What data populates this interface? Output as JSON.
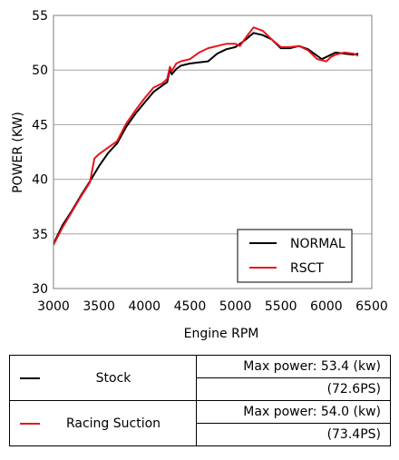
{
  "chart_data": {
    "type": "line",
    "xlabel": "Engine RPM",
    "ylabel": "POWER (KW)",
    "xlim": [
      3000,
      6500
    ],
    "ylim": [
      30,
      55
    ],
    "xticks": [
      3000,
      3500,
      4000,
      4500,
      5000,
      5500,
      6000,
      6500
    ],
    "yticks": [
      30,
      35,
      40,
      45,
      50,
      55
    ],
    "grid": "horizontal",
    "legend_position": "bottom-right",
    "series": [
      {
        "name": "NORMAL",
        "color": "#000000",
        "x": [
          3000,
          3100,
          3200,
          3300,
          3400,
          3500,
          3600,
          3700,
          3800,
          3900,
          4000,
          4100,
          4200,
          4250,
          4280,
          4300,
          4350,
          4400,
          4500,
          4600,
          4700,
          4800,
          4900,
          5000,
          5100,
          5200,
          5300,
          5400,
          5500,
          5600,
          5700,
          5800,
          5900,
          5950,
          6000,
          6100,
          6200,
          6300,
          6350
        ],
        "y": [
          34.1,
          35.8,
          37.1,
          38.5,
          39.8,
          41.2,
          42.4,
          43.3,
          44.8,
          46.0,
          47.0,
          48.0,
          48.6,
          48.9,
          50.1,
          49.6,
          50.1,
          50.4,
          50.6,
          50.7,
          50.8,
          51.5,
          51.9,
          52.1,
          52.7,
          53.4,
          53.2,
          52.8,
          52.0,
          52.0,
          52.2,
          51.9,
          51.3,
          51.0,
          51.2,
          51.6,
          51.5,
          51.4,
          51.5
        ]
      },
      {
        "name": "RSCT",
        "color": "#e8141c",
        "x": [
          3000,
          3100,
          3200,
          3300,
          3400,
          3450,
          3500,
          3600,
          3700,
          3800,
          3900,
          4000,
          4100,
          4200,
          4250,
          4280,
          4300,
          4350,
          4400,
          4500,
          4600,
          4700,
          4800,
          4900,
          5000,
          5050,
          5100,
          5200,
          5300,
          5400,
          5500,
          5600,
          5700,
          5800,
          5900,
          6000,
          6050,
          6100,
          6200,
          6300,
          6350
        ],
        "y": [
          34.0,
          35.6,
          37.0,
          38.4,
          39.7,
          41.9,
          42.3,
          42.9,
          43.5,
          45.1,
          46.3,
          47.4,
          48.4,
          48.8,
          49.2,
          50.3,
          49.9,
          50.6,
          50.8,
          51.0,
          51.6,
          52.0,
          52.2,
          52.4,
          52.4,
          52.2,
          52.8,
          53.9,
          53.6,
          52.8,
          52.1,
          52.1,
          52.2,
          51.8,
          51.0,
          50.8,
          51.2,
          51.4,
          51.6,
          51.5,
          51.3
        ]
      }
    ]
  },
  "table": {
    "rows": [
      {
        "name": "Stock",
        "color": "#000000",
        "max_power": "Max power: 53.4 (kw)",
        "ps": "(72.6PS)"
      },
      {
        "name": "Racing Suction",
        "color": "#e8141c",
        "max_power": "Max power: 54.0 (kw)",
        "ps": "(73.4PS)"
      }
    ]
  }
}
